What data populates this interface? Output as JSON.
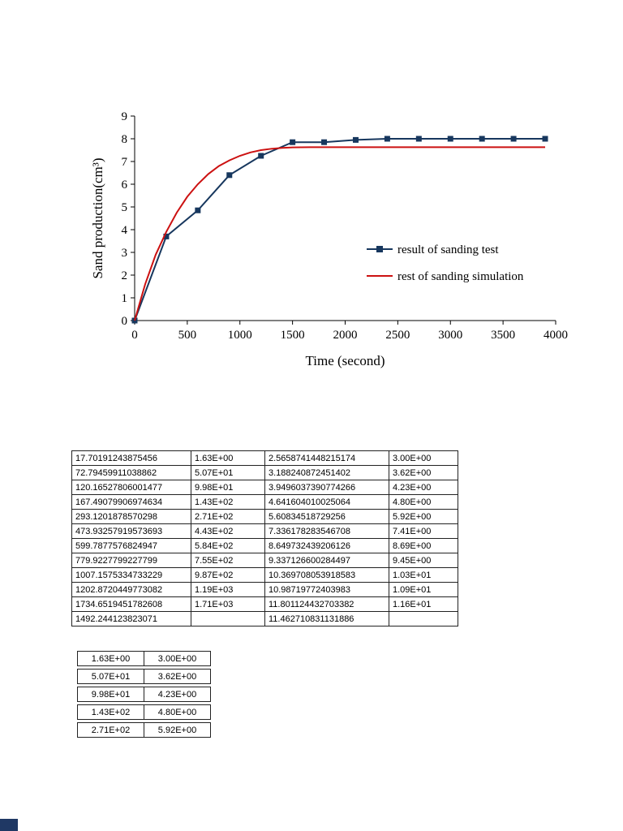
{
  "page": {
    "background": "#ffffff"
  },
  "chart_data": {
    "type": "line",
    "title": "",
    "xlabel": "Time (second)",
    "ylabel": "Sand production(cm³)",
    "xlim": [
      0,
      4000
    ],
    "ylim": [
      0,
      9
    ],
    "xticks": [
      0,
      500,
      1000,
      1500,
      2000,
      2500,
      3000,
      3500,
      4000
    ],
    "yticks": [
      0,
      1,
      2,
      3,
      4,
      5,
      6,
      7,
      8,
      9
    ],
    "grid": false,
    "legend_position": "inside-right",
    "series": [
      {
        "name": "result of sanding test",
        "color": "#17375E",
        "marker": "square",
        "x": [
          0,
          300,
          600,
          900,
          1200,
          1500,
          1800,
          2100,
          2400,
          2700,
          3000,
          3300,
          3600,
          3900
        ],
        "y": [
          0,
          3.7,
          4.85,
          6.4,
          7.25,
          7.85,
          7.85,
          7.95,
          8.0,
          8.0,
          8.0,
          8.0,
          8.0,
          8.0
        ]
      },
      {
        "name": "rest of sanding simulation",
        "color": "#CC1111",
        "marker": "none",
        "x": [
          0,
          100,
          200,
          300,
          400,
          500,
          600,
          700,
          800,
          900,
          1000,
          1100,
          1200,
          1300,
          1400,
          1500,
          1700,
          2000,
          2500,
          3000,
          3500,
          3900
        ],
        "y": [
          0,
          1.6,
          2.9,
          3.9,
          4.75,
          5.45,
          6.0,
          6.45,
          6.8,
          7.05,
          7.25,
          7.4,
          7.5,
          7.56,
          7.6,
          7.62,
          7.63,
          7.63,
          7.63,
          7.63,
          7.63,
          7.63
        ]
      }
    ]
  },
  "table1": {
    "rows": [
      [
        "17.70191243875456",
        "1.63E+00",
        "2.5658741448215174",
        "3.00E+00"
      ],
      [
        "72.79459911038862",
        "5.07E+01",
        "3.188240872451402",
        "3.62E+00"
      ],
      [
        "120.16527806001477",
        "9.98E+01",
        "3.9496037390774266",
        "4.23E+00"
      ],
      [
        "167.49079906974634",
        "1.43E+02",
        "4.641604010025064",
        "4.80E+00"
      ],
      [
        "293.1201878570298",
        "2.71E+02",
        "5.60834518729256",
        "5.92E+00"
      ],
      [
        "473.93257919573693",
        "4.43E+02",
        "7.336178283546708",
        "7.41E+00"
      ],
      [
        "599.7877576824947",
        "5.84E+02",
        "8.649732439206126",
        "8.69E+00"
      ],
      [
        "779.9227799227799",
        "7.55E+02",
        "9.337126600284497",
        "9.45E+00"
      ],
      [
        "1007.1575334733229",
        "9.87E+02",
        "10.369708053918583",
        "1.03E+01"
      ],
      [
        "1202.8720449773082",
        "1.19E+03",
        "10.98719772403983",
        "1.09E+01"
      ],
      [
        "1734.6519451782608",
        "1.71E+03",
        "11.801124432703382",
        "1.16E+01"
      ],
      [
        "1492.244123823071",
        "",
        "11.462710831131886",
        ""
      ]
    ]
  },
  "table2": {
    "rows": [
      [
        "1.63E+00",
        "3.00E+00"
      ],
      [
        "5.07E+01",
        "3.62E+00"
      ],
      [
        "9.98E+01",
        "4.23E+00"
      ],
      [
        "1.43E+02",
        "4.80E+00"
      ],
      [
        "2.71E+02",
        "5.92E+00"
      ]
    ]
  }
}
